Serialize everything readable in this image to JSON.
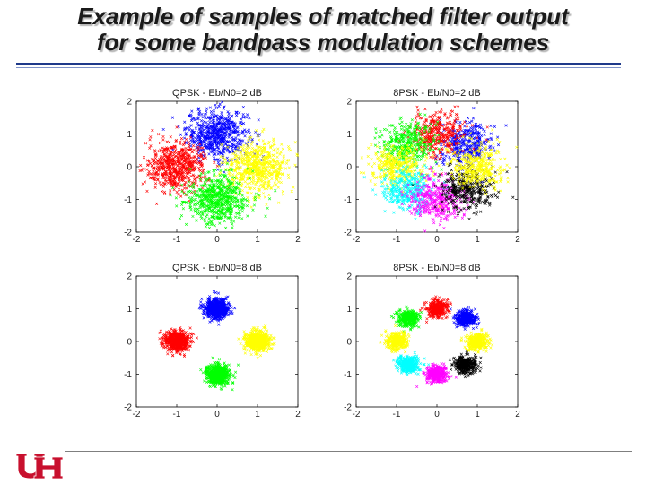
{
  "slide": {
    "title_line1": "Example of samples of matched filter output",
    "title_line2": "for some bandpass modulation schemes",
    "logo_text": "UH",
    "accent_color": "#1f3a8a",
    "logo_color": "#c8102e"
  },
  "chart_data": [
    {
      "type": "scatter",
      "title": "QPSK - Eb/N0=2 dB",
      "xlim": [
        -2,
        2
      ],
      "ylim": [
        -2,
        2
      ],
      "x_ticks": [
        "-2",
        "-1",
        "0",
        "1",
        "2"
      ],
      "y_ticks": [
        "2",
        "1",
        "0",
        "-1",
        "-2"
      ],
      "grid": false,
      "constellation": "QPSK",
      "eb_n0_db": 2,
      "clusters": [
        {
          "color": "#0000ff",
          "center": [
            0,
            1
          ]
        },
        {
          "color": "#ff0000",
          "center": [
            -1,
            0
          ]
        },
        {
          "color": "#ffff00",
          "center": [
            1,
            0
          ]
        },
        {
          "color": "#00ff00",
          "center": [
            0,
            -1
          ]
        }
      ],
      "spread": 0.38
    },
    {
      "type": "scatter",
      "title": "8PSK - Eb/N0=2 dB",
      "xlim": [
        -2,
        2
      ],
      "ylim": [
        -2,
        2
      ],
      "x_ticks": [
        "-2",
        "-1",
        "0",
        "1",
        "2"
      ],
      "y_ticks": [
        "2",
        "1",
        "0",
        "-1",
        "-2"
      ],
      "grid": false,
      "constellation": "8PSK",
      "eb_n0_db": 2,
      "clusters": [
        {
          "color": "#0000ff",
          "center": [
            0.71,
            0.71
          ]
        },
        {
          "color": "#ff0000",
          "center": [
            0,
            1
          ]
        },
        {
          "color": "#00ff00",
          "center": [
            -0.71,
            0.71
          ]
        },
        {
          "color": "#ffff00",
          "center": [
            -1,
            0
          ]
        },
        {
          "color": "#00ffff",
          "center": [
            -0.71,
            -0.71
          ]
        },
        {
          "color": "#ff00ff",
          "center": [
            0,
            -1
          ]
        },
        {
          "color": "#000000",
          "center": [
            0.71,
            -0.71
          ]
        },
        {
          "color": "#ffff00",
          "center": [
            1,
            0
          ]
        }
      ],
      "spread": 0.33
    },
    {
      "type": "scatter",
      "title": "QPSK - Eb/N0=8 dB",
      "xlim": [
        -2,
        2
      ],
      "ylim": [
        -2,
        2
      ],
      "x_ticks": [
        "-2",
        "-1",
        "0",
        "1",
        "2"
      ],
      "y_ticks": [
        "2",
        "1",
        "0",
        "-1",
        "-2"
      ],
      "grid": false,
      "constellation": "QPSK",
      "eb_n0_db": 8,
      "clusters": [
        {
          "color": "#0000ff",
          "center": [
            0,
            1
          ]
        },
        {
          "color": "#ff0000",
          "center": [
            -1,
            0
          ]
        },
        {
          "color": "#ffff00",
          "center": [
            1,
            0
          ]
        },
        {
          "color": "#00ff00",
          "center": [
            0,
            -1
          ]
        }
      ],
      "spread": 0.15
    },
    {
      "type": "scatter",
      "title": "8PSK - Eb/N0=8 dB",
      "xlim": [
        -2,
        2
      ],
      "ylim": [
        -2,
        2
      ],
      "x_ticks": [
        "-2",
        "-1",
        "0",
        "1",
        "2"
      ],
      "y_ticks": [
        "2",
        "1",
        "0",
        "-1",
        "-2"
      ],
      "grid": false,
      "constellation": "8PSK",
      "eb_n0_db": 8,
      "clusters": [
        {
          "color": "#0000ff",
          "center": [
            0.71,
            0.71
          ]
        },
        {
          "color": "#ff0000",
          "center": [
            0,
            1
          ]
        },
        {
          "color": "#00ff00",
          "center": [
            -0.71,
            0.71
          ]
        },
        {
          "color": "#ffff00",
          "center": [
            -1,
            0
          ]
        },
        {
          "color": "#00ffff",
          "center": [
            -0.71,
            -0.71
          ]
        },
        {
          "color": "#ff00ff",
          "center": [
            0,
            -1
          ]
        },
        {
          "color": "#000000",
          "center": [
            0.71,
            -0.71
          ]
        },
        {
          "color": "#ffff00",
          "center": [
            1,
            0
          ]
        }
      ],
      "spread": 0.13
    }
  ]
}
